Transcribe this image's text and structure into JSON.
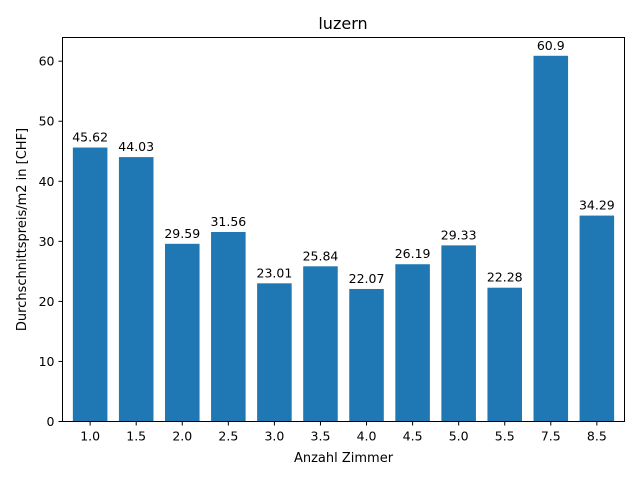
{
  "chart_data": {
    "type": "bar",
    "title": "luzern",
    "xlabel": "Anzahl Zimmer",
    "ylabel": "Durchschnittspreis/m2 in [CHF]",
    "categories": [
      "1.0",
      "1.5",
      "2.0",
      "2.5",
      "3.0",
      "3.5",
      "4.0",
      "4.5",
      "5.0",
      "5.5",
      "7.5",
      "8.5"
    ],
    "values": [
      45.62,
      44.03,
      29.59,
      31.56,
      23.01,
      25.84,
      22.07,
      26.19,
      29.33,
      22.28,
      60.9,
      34.29
    ],
    "data_labels": [
      "45.62",
      "44.03",
      "29.59",
      "31.56",
      "23.01",
      "25.84",
      "22.07",
      "26.19",
      "29.33",
      "22.28",
      "60.9",
      "34.29"
    ],
    "y_ticks": [
      0,
      10,
      20,
      30,
      40,
      50,
      60
    ],
    "ylim": [
      0,
      63.945
    ],
    "grid": false,
    "legend": "none",
    "bar_color": "#1f77b4"
  }
}
